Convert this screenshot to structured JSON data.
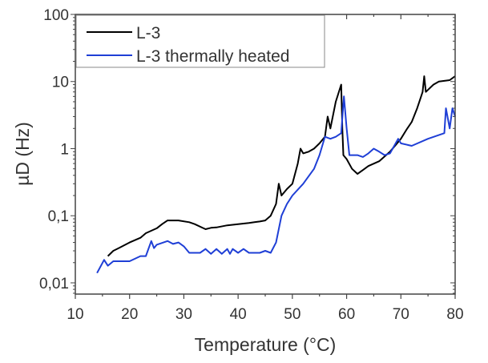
{
  "chart_data": {
    "type": "line",
    "title": "",
    "xlabel": "Temperature (°C)",
    "ylabel": "µD (Hz)",
    "xlim": [
      10,
      80
    ],
    "ylim": [
      0.0068,
      100
    ],
    "yscale": "log",
    "xticks": [
      10,
      20,
      30,
      40,
      50,
      60,
      70,
      80
    ],
    "xtick_labels": [
      "10",
      "20",
      "30",
      "40",
      "50",
      "60",
      "70",
      "80"
    ],
    "yticks": [
      0.01,
      0.1,
      1,
      10,
      100
    ],
    "ytick_labels": [
      "0,01",
      "0,1",
      "1",
      "10",
      "100"
    ],
    "grid": false,
    "legend_position": "top-left",
    "series": [
      {
        "name": "L-3",
        "color": "#000000",
        "x": [
          16,
          17,
          18,
          20,
          22,
          23,
          25,
          26,
          27,
          29,
          31,
          32,
          34,
          35,
          36,
          38,
          40,
          42,
          43,
          44,
          45,
          46,
          47,
          47.5,
          48,
          49,
          50,
          51,
          51.5,
          52,
          53,
          54,
          55,
          56,
          56.5,
          57,
          58,
          59,
          59.2,
          59.4,
          60,
          61,
          62,
          63,
          64,
          66,
          68,
          70,
          71,
          72,
          73,
          74,
          74.3,
          74.6,
          76,
          77,
          79,
          80
        ],
        "y": [
          0.025,
          0.03,
          0.033,
          0.04,
          0.047,
          0.055,
          0.065,
          0.075,
          0.085,
          0.085,
          0.08,
          0.075,
          0.063,
          0.066,
          0.067,
          0.072,
          0.075,
          0.078,
          0.08,
          0.082,
          0.085,
          0.1,
          0.15,
          0.3,
          0.2,
          0.25,
          0.3,
          0.6,
          1.0,
          0.85,
          0.9,
          1.0,
          1.2,
          1.5,
          3.0,
          2.0,
          5,
          9,
          2.0,
          0.8,
          0.7,
          0.5,
          0.42,
          0.48,
          0.55,
          0.65,
          0.9,
          1.4,
          1.9,
          2.5,
          4,
          7,
          12,
          7,
          9,
          10,
          10.5,
          12
        ]
      },
      {
        "name": "L-3 thermally heated",
        "color": "#1f3fd6",
        "x": [
          14,
          15.3,
          16,
          17,
          20,
          22,
          23,
          24,
          24.5,
          25,
          27,
          28,
          29,
          30,
          31,
          33,
          34,
          35,
          36,
          37,
          38,
          38.5,
          39,
          40,
          41,
          42,
          44,
          45,
          46,
          47,
          48,
          49,
          50,
          52,
          54,
          55,
          56,
          57,
          58,
          59,
          59.5,
          60,
          60.5,
          62,
          63,
          64,
          65,
          66,
          67,
          68,
          69.5,
          70,
          72,
          75,
          78,
          78.3,
          79,
          79.5,
          80
        ],
        "y": [
          0.014,
          0.022,
          0.018,
          0.021,
          0.021,
          0.025,
          0.025,
          0.042,
          0.033,
          0.037,
          0.042,
          0.038,
          0.04,
          0.035,
          0.028,
          0.028,
          0.032,
          0.027,
          0.032,
          0.027,
          0.032,
          0.027,
          0.032,
          0.028,
          0.032,
          0.028,
          0.028,
          0.03,
          0.028,
          0.04,
          0.1,
          0.15,
          0.2,
          0.3,
          0.5,
          0.8,
          1.5,
          1.4,
          1.5,
          1.7,
          6,
          2.0,
          0.8,
          0.8,
          0.75,
          0.85,
          1.0,
          0.9,
          0.8,
          0.85,
          1.4,
          1.2,
          1.1,
          1.4,
          1.7,
          4,
          2.0,
          4,
          3
        ]
      }
    ]
  }
}
